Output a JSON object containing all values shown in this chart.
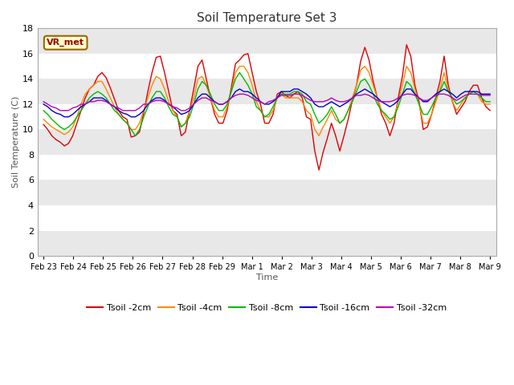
{
  "title": "Soil Temperature Set 3",
  "xlabel": "Time",
  "ylabel": "Soil Temperature (C)",
  "ylim": [
    0,
    18
  ],
  "yticks": [
    0,
    2,
    4,
    6,
    8,
    10,
    12,
    14,
    16,
    18
  ],
  "figure_bg": "#ffffff",
  "plot_bg": "#ffffff",
  "band_color": "#e8e8e8",
  "annotation_text": "VR_met",
  "annotation_bg": "#ffffcc",
  "annotation_border": "#996600",
  "x_labels": [
    "Feb 23",
    "Feb 24",
    "Feb 25",
    "Feb 26",
    "Feb 27",
    "Feb 28",
    "Feb 29",
    "Mar 1",
    "Mar 2",
    "Mar 3",
    "Mar 4",
    "Mar 5",
    "Mar 6",
    "Mar 7",
    "Mar 8",
    "Mar 9"
  ],
  "series": {
    "Tsoil -2cm": {
      "color": "#dd0000",
      "lw": 1.0
    },
    "Tsoil -4cm": {
      "color": "#ff8800",
      "lw": 1.0
    },
    "Tsoil -8cm": {
      "color": "#00bb00",
      "lw": 1.0
    },
    "Tsoil -16cm": {
      "color": "#0000cc",
      "lw": 1.0
    },
    "Tsoil -32cm": {
      "color": "#bb00bb",
      "lw": 1.0
    }
  },
  "t2cm": [
    10.4,
    10.0,
    9.5,
    9.2,
    9.0,
    8.7,
    8.9,
    9.5,
    10.5,
    11.5,
    12.5,
    13.2,
    13.5,
    14.2,
    14.5,
    14.1,
    13.3,
    12.4,
    11.5,
    11.0,
    10.8,
    9.4,
    9.5,
    9.8,
    11.3,
    13.0,
    14.5,
    15.7,
    15.8,
    14.5,
    13.0,
    11.5,
    11.2,
    9.5,
    9.8,
    11.5,
    13.2,
    15.0,
    15.5,
    14.0,
    12.5,
    11.2,
    10.5,
    10.5,
    11.5,
    13.3,
    15.2,
    15.5,
    15.9,
    16.0,
    14.5,
    13.0,
    12.0,
    10.5,
    10.5,
    11.2,
    12.8,
    13.0,
    12.7,
    12.5,
    12.8,
    13.0,
    12.5,
    11.0,
    10.8,
    8.3,
    6.8,
    8.2,
    9.3,
    10.5,
    9.5,
    8.3,
    9.5,
    10.8,
    12.3,
    13.5,
    15.4,
    16.5,
    15.5,
    13.8,
    12.5,
    11.2,
    10.5,
    9.5,
    10.5,
    12.5,
    14.2,
    16.7,
    15.8,
    13.5,
    12.2,
    10.0,
    10.2,
    11.2,
    12.5,
    13.8,
    15.8,
    13.5,
    12.2,
    11.2,
    11.7,
    12.2,
    13.0,
    13.5,
    13.5,
    12.5,
    11.8,
    11.5
  ],
  "t4cm": [
    10.8,
    10.5,
    10.2,
    10.0,
    9.8,
    9.6,
    9.8,
    10.2,
    11.0,
    12.0,
    12.8,
    13.2,
    13.5,
    13.8,
    13.8,
    13.2,
    12.5,
    11.8,
    11.2,
    10.8,
    10.5,
    10.0,
    10.0,
    10.5,
    11.5,
    12.5,
    13.5,
    14.2,
    14.0,
    13.2,
    12.2,
    11.5,
    11.0,
    10.2,
    10.5,
    11.5,
    12.5,
    14.0,
    14.2,
    13.5,
    12.5,
    11.5,
    11.0,
    11.0,
    11.8,
    13.0,
    14.5,
    15.0,
    15.0,
    14.5,
    13.5,
    12.2,
    11.5,
    11.0,
    11.0,
    11.5,
    12.5,
    12.8,
    12.5,
    12.5,
    12.5,
    12.5,
    12.2,
    11.5,
    11.2,
    10.0,
    9.5,
    10.2,
    10.8,
    11.5,
    10.8,
    10.5,
    10.8,
    11.5,
    12.5,
    13.5,
    14.7,
    15.0,
    14.5,
    13.5,
    12.5,
    11.5,
    11.0,
    10.5,
    11.0,
    12.2,
    13.5,
    15.0,
    14.5,
    13.2,
    12.0,
    10.5,
    10.5,
    11.2,
    12.2,
    13.2,
    14.5,
    13.2,
    12.2,
    11.5,
    12.0,
    12.5,
    12.8,
    13.0,
    12.8,
    12.2,
    12.0,
    12.0
  ],
  "t8cm": [
    11.5,
    11.2,
    10.8,
    10.5,
    10.2,
    10.0,
    10.2,
    10.5,
    11.0,
    11.5,
    12.0,
    12.5,
    12.8,
    13.0,
    12.8,
    12.5,
    12.0,
    11.5,
    11.2,
    10.8,
    10.5,
    10.0,
    9.5,
    10.0,
    11.0,
    11.8,
    12.5,
    13.0,
    13.0,
    12.5,
    11.8,
    11.2,
    11.0,
    10.2,
    10.5,
    11.0,
    12.0,
    13.2,
    13.8,
    13.5,
    12.8,
    12.0,
    11.5,
    11.5,
    12.0,
    13.0,
    14.0,
    14.5,
    14.0,
    13.5,
    12.8,
    11.8,
    11.5,
    11.0,
    11.2,
    11.8,
    12.5,
    12.8,
    12.8,
    12.8,
    13.0,
    13.0,
    12.8,
    12.2,
    12.0,
    11.2,
    10.5,
    10.8,
    11.2,
    11.8,
    11.2,
    10.5,
    10.8,
    11.5,
    12.2,
    13.0,
    13.8,
    14.0,
    13.5,
    12.8,
    12.0,
    11.5,
    11.2,
    10.8,
    11.0,
    11.8,
    12.8,
    13.8,
    13.5,
    12.8,
    12.0,
    11.2,
    11.2,
    11.8,
    12.5,
    13.0,
    13.8,
    13.0,
    12.5,
    12.0,
    12.2,
    12.5,
    12.8,
    13.0,
    12.8,
    12.5,
    12.2,
    12.2
  ],
  "t16cm": [
    12.0,
    11.8,
    11.5,
    11.3,
    11.2,
    11.0,
    11.0,
    11.2,
    11.5,
    11.8,
    12.0,
    12.2,
    12.5,
    12.5,
    12.5,
    12.3,
    12.0,
    11.8,
    11.5,
    11.3,
    11.2,
    11.0,
    11.0,
    11.2,
    11.5,
    12.0,
    12.3,
    12.5,
    12.5,
    12.3,
    12.0,
    11.8,
    11.5,
    11.2,
    11.3,
    11.5,
    12.0,
    12.5,
    12.8,
    12.8,
    12.5,
    12.2,
    12.0,
    12.0,
    12.2,
    12.5,
    13.0,
    13.2,
    13.0,
    13.0,
    12.8,
    12.5,
    12.2,
    12.0,
    12.0,
    12.2,
    12.5,
    13.0,
    13.0,
    13.0,
    13.2,
    13.2,
    13.0,
    12.8,
    12.5,
    12.0,
    11.8,
    11.8,
    12.0,
    12.2,
    12.0,
    11.8,
    12.0,
    12.2,
    12.5,
    12.8,
    13.0,
    13.2,
    13.0,
    12.8,
    12.5,
    12.2,
    12.0,
    11.8,
    12.0,
    12.3,
    12.8,
    13.2,
    13.2,
    12.8,
    12.5,
    12.2,
    12.2,
    12.5,
    12.8,
    13.0,
    13.2,
    13.0,
    12.8,
    12.5,
    12.8,
    13.0,
    13.0,
    13.0,
    13.0,
    12.8,
    12.8,
    12.8
  ],
  "t32cm": [
    12.2,
    12.0,
    11.8,
    11.7,
    11.5,
    11.5,
    11.5,
    11.7,
    11.8,
    12.0,
    12.0,
    12.2,
    12.2,
    12.3,
    12.3,
    12.2,
    12.0,
    11.8,
    11.7,
    11.5,
    11.5,
    11.5,
    11.5,
    11.7,
    12.0,
    12.0,
    12.2,
    12.3,
    12.3,
    12.2,
    12.0,
    11.8,
    11.7,
    11.5,
    11.5,
    11.7,
    12.0,
    12.3,
    12.5,
    12.5,
    12.3,
    12.2,
    12.0,
    12.0,
    12.2,
    12.5,
    12.7,
    12.8,
    12.8,
    12.7,
    12.5,
    12.3,
    12.2,
    12.0,
    12.2,
    12.3,
    12.5,
    12.7,
    12.7,
    12.7,
    12.8,
    12.8,
    12.7,
    12.5,
    12.3,
    12.2,
    12.2,
    12.2,
    12.3,
    12.5,
    12.3,
    12.2,
    12.2,
    12.3,
    12.5,
    12.7,
    12.7,
    12.8,
    12.7,
    12.5,
    12.3,
    12.2,
    12.2,
    12.2,
    12.3,
    12.5,
    12.7,
    12.8,
    12.8,
    12.7,
    12.5,
    12.3,
    12.3,
    12.5,
    12.7,
    12.8,
    12.8,
    12.7,
    12.5,
    12.3,
    12.5,
    12.7,
    12.8,
    12.8,
    12.8,
    12.7,
    12.7,
    12.7
  ]
}
